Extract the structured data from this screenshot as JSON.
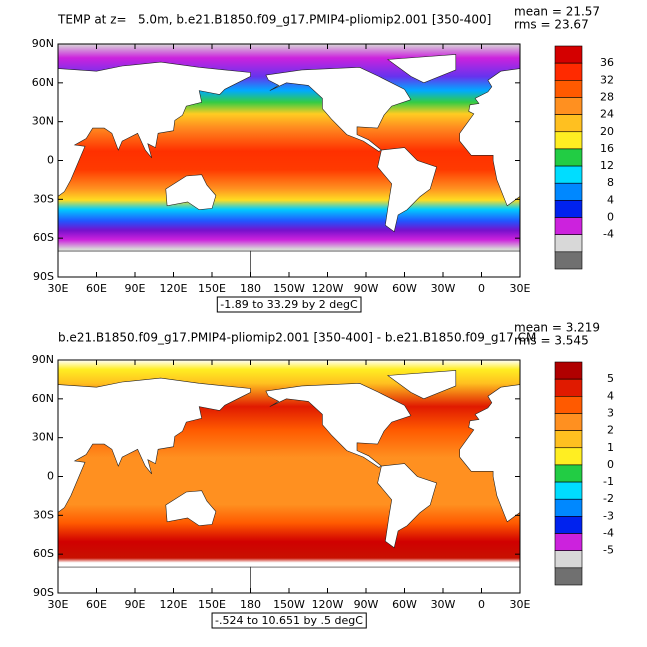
{
  "panels": [
    {
      "title": "TEMP at z=   5.0m, b.e21.B1850.f09_g17.PMIP4-pliomip2.001 [350-400]",
      "mean": "mean = 21.57",
      "rms": "rms = 23.67",
      "lat_labels": [
        "90N",
        "60N",
        "30N",
        "0",
        "30S",
        "60S",
        "90S"
      ],
      "lon_labels": [
        "30E",
        "60E",
        "90E",
        "120E",
        "150E",
        "180",
        "150W",
        "120W",
        "90W",
        "60W",
        "30W",
        "0",
        "30E"
      ],
      "colorbar": {
        "labels": [
          "36",
          "32",
          "28",
          "24",
          "20",
          "16",
          "12",
          "8",
          "4",
          "0",
          "-4"
        ],
        "colors": [
          "#d40000",
          "#ff2a00",
          "#ff5a00",
          "#ff9020",
          "#ffc020",
          "#ffee22",
          "#22cc44",
          "#00ddff",
          "#0088ff",
          "#0022ee",
          "#cc22dd",
          "#d8d8d8",
          "#707070"
        ]
      },
      "contour_info": "-1.89 to 33.29 by 2 degC"
    },
    {
      "title": "b.e21.B1850.f09_g17.PMIP4-pliomip2.001 [350-400] - b.e21.B1850.f09_g17.CM",
      "mean": "mean = 3.219",
      "rms": "rms = 3.545",
      "lat_labels": [
        "90N",
        "60N",
        "30N",
        "0",
        "30S",
        "60S",
        "90S"
      ],
      "lon_labels": [
        "30E",
        "60E",
        "90E",
        "120E",
        "150E",
        "180",
        "150W",
        "120W",
        "90W",
        "60W",
        "30W",
        "0",
        "30E"
      ],
      "colorbar": {
        "labels": [
          "5",
          "4",
          "3",
          "2",
          "1",
          "0",
          "-1",
          "-2",
          "-3",
          "-4",
          "-5"
        ],
        "colors": [
          "#b00000",
          "#e01a00",
          "#ff5a00",
          "#ff9020",
          "#ffc020",
          "#ffee22",
          "#22cc44",
          "#00ddff",
          "#0088ff",
          "#0022ee",
          "#cc22dd",
          "#d8d8d8",
          "#707070"
        ]
      },
      "contour_info": "-.524 to 10.651 by .5 degC"
    }
  ]
}
